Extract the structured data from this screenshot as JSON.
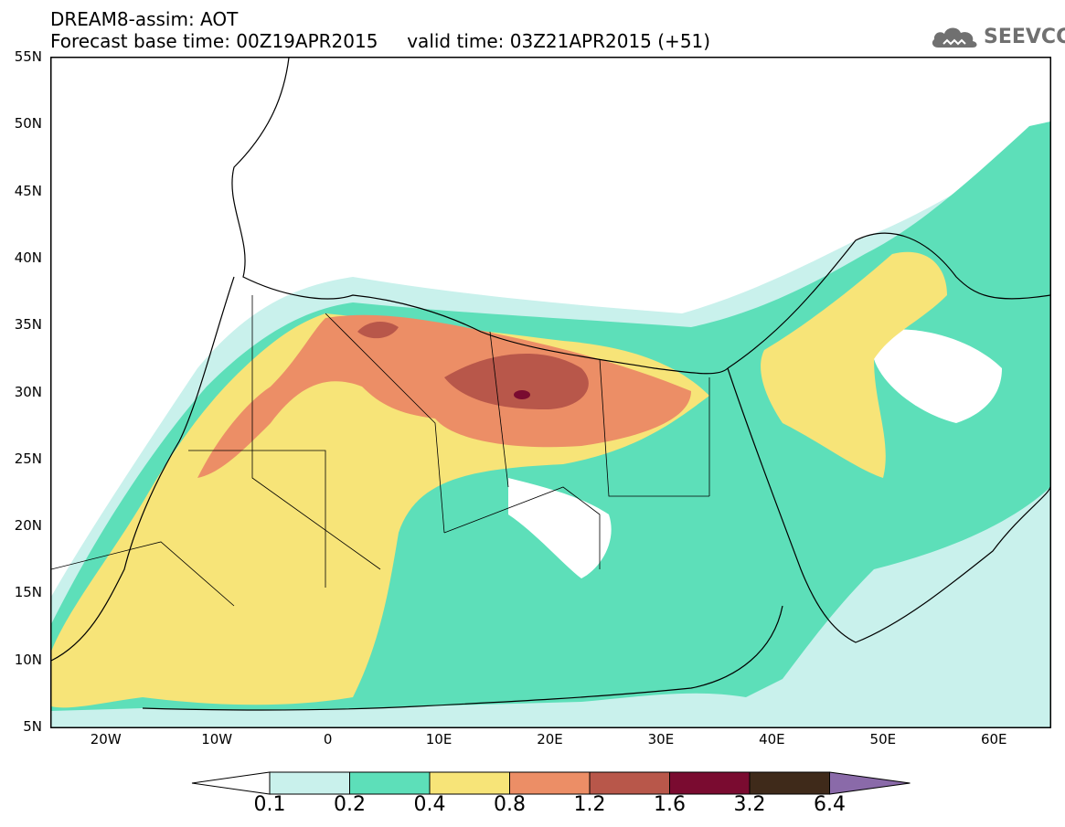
{
  "header": {
    "line1": "DREAM8-assim: AOT",
    "line2": "Forecast base time: 00Z19APR2015     valid time: 03Z21APR2015 (+51)"
  },
  "logo": {
    "text": "SEEVCCC",
    "icon": "cloud-icon"
  },
  "map": {
    "lat_range": [
      5,
      55
    ],
    "lon_range": [
      -25,
      65
    ],
    "lat_labels": [
      "55N",
      "50N",
      "45N",
      "40N",
      "35N",
      "30N",
      "25N",
      "20N",
      "15N",
      "10N",
      "5N"
    ],
    "lon_labels": [
      "20W",
      "10W",
      "0",
      "10E",
      "20E",
      "30E",
      "40E",
      "50E",
      "60E"
    ]
  },
  "colorbar": {
    "labels": [
      "0.1",
      "0.2",
      "0.4",
      "0.8",
      "1.2",
      "1.6",
      "3.2",
      "6.4"
    ],
    "colors": [
      "#ffffff",
      "#c9f1ec",
      "#5ddfb9",
      "#f7e478",
      "#ec8e66",
      "#b8574a",
      "#7a0b30",
      "#3f2a1a",
      "#8a6aa9"
    ]
  }
}
